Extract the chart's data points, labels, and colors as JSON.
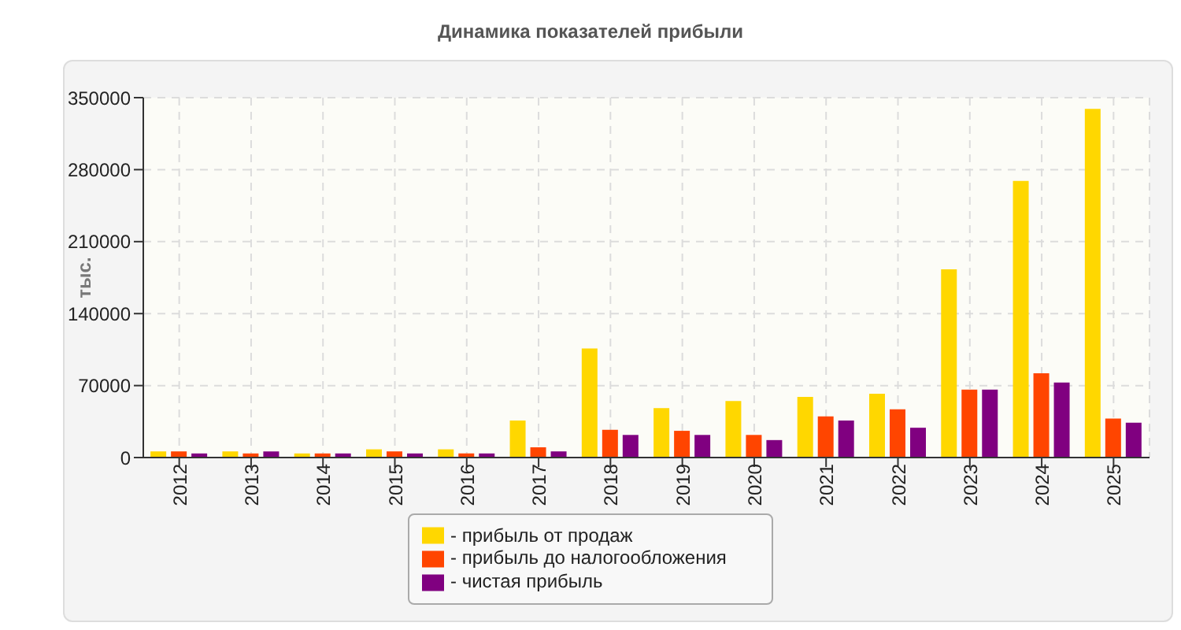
{
  "chart_data": {
    "type": "bar",
    "title": "Динамика показателей прибыли",
    "ylabel": "тыс.",
    "categories": [
      "2012",
      "2013",
      "2014",
      "2015",
      "2016",
      "2017",
      "2018",
      "2019",
      "2020",
      "2021",
      "2022",
      "2023",
      "2024",
      "2025"
    ],
    "series": [
      {
        "name": "- прибыль от продаж",
        "color": "#ffd700",
        "values": [
          6000,
          6000,
          4000,
          8000,
          8000,
          36000,
          106000,
          48000,
          55000,
          59000,
          62000,
          183000,
          269000,
          339000
        ]
      },
      {
        "name": "- прибыль до налогообложения",
        "color": "#ff4500",
        "values": [
          6000,
          4000,
          4000,
          6000,
          4000,
          10000,
          27000,
          26000,
          22000,
          40000,
          47000,
          66000,
          82000,
          38000
        ]
      },
      {
        "name": "- чистая прибыль",
        "color": "#800080",
        "values": [
          4000,
          6000,
          4000,
          4000,
          4000,
          6000,
          22000,
          22000,
          17000,
          36000,
          29000,
          66000,
          73000,
          34000
        ]
      }
    ],
    "ylim": [
      0,
      350000
    ],
    "yticks": [
      0,
      70000,
      140000,
      210000,
      280000,
      350000
    ],
    "grid": true,
    "legend": "bottom"
  }
}
